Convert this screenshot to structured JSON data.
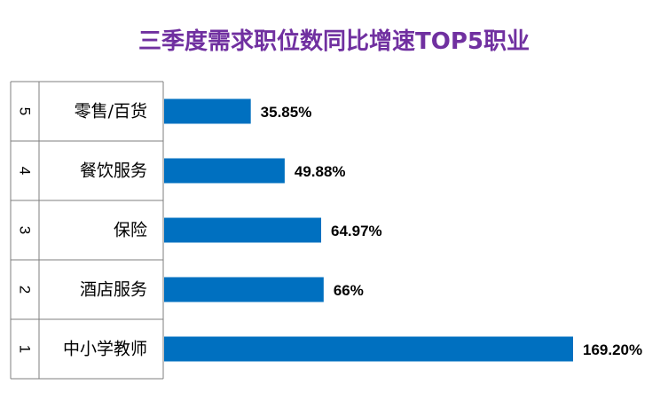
{
  "chart_data": {
    "type": "bar",
    "orientation": "horizontal",
    "title": "三季度需求职位数同比增速TOP5职业",
    "ranks": [
      "5",
      "4",
      "3",
      "2",
      "1"
    ],
    "categories": [
      "零售/百货",
      "餐饮服务",
      "保险",
      "酒店服务",
      "中小学教师"
    ],
    "values": [
      35.85,
      49.88,
      64.97,
      66,
      169.2
    ],
    "value_labels": [
      "35.85%",
      "49.88%",
      "64.97%",
      "66%",
      "169.20%"
    ],
    "xlim": [
      0,
      169.2
    ],
    "grid": false,
    "legend": "none",
    "bar_color": "#0070c0"
  }
}
